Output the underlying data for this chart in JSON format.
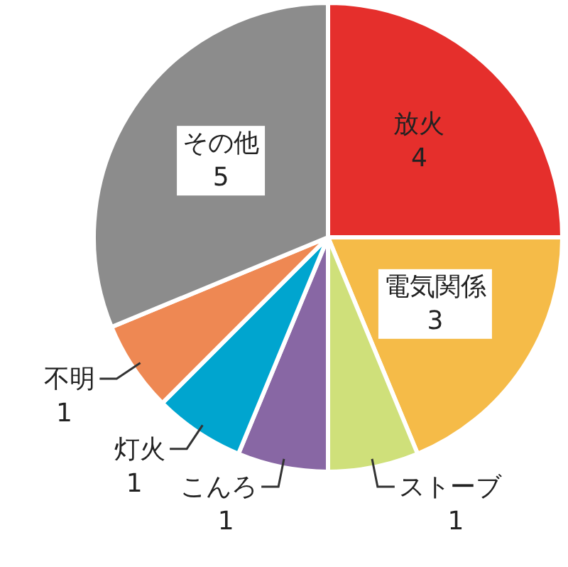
{
  "chart_data": {
    "type": "pie",
    "categories": [
      "放火",
      "電気関係",
      "ストーブ",
      "こんろ",
      "灯火",
      "不明",
      "その他"
    ],
    "values": [
      4,
      3,
      1,
      1,
      1,
      1,
      5
    ],
    "colors": [
      "#e52f2c",
      "#f5bb48",
      "#cfe07a",
      "#8867a4",
      "#00a5cf",
      "#ee8853",
      "#8c8c8c"
    ],
    "data_labels": true
  }
}
